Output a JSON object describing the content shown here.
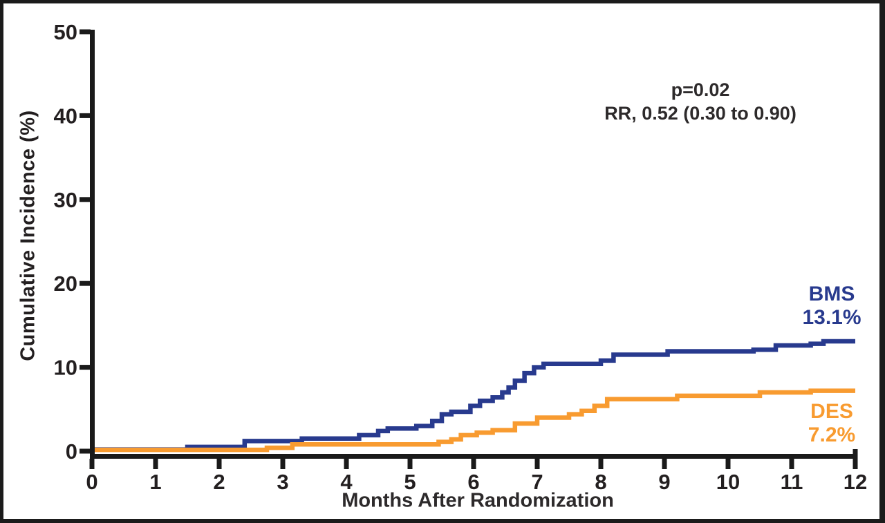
{
  "chart_data": {
    "type": "line",
    "subtype": "kaplan-meier-cumulative-incidence-step",
    "title": "",
    "xlabel": "Months After Randomization",
    "ylabel": "Cumulative Incidence (%)",
    "xlim": [
      0,
      12
    ],
    "ylim": [
      0,
      50
    ],
    "x_ticks": [
      0,
      1,
      2,
      3,
      4,
      5,
      6,
      7,
      8,
      9,
      10,
      11,
      12
    ],
    "y_ticks": [
      0,
      10,
      20,
      30,
      40,
      50
    ],
    "grid": false,
    "legend_position": "end-of-curve labels",
    "axis_color": "#1a1a1a",
    "tick_label_color": "#231f20",
    "annotations": {
      "p_value": "p=0.02",
      "risk_ratio": "RR, 0.52 (0.30 to 0.90)"
    },
    "series": [
      {
        "name": "BMS",
        "end_label": "13.1%",
        "final_value_percent": 13.1,
        "color": "#283a8e",
        "points": [
          [
            0,
            0.2
          ],
          [
            1.5,
            0.5
          ],
          [
            2.4,
            1.2
          ],
          [
            3.3,
            1.5
          ],
          [
            4.2,
            1.9
          ],
          [
            4.5,
            2.4
          ],
          [
            4.65,
            2.7
          ],
          [
            5.1,
            3.0
          ],
          [
            5.35,
            3.6
          ],
          [
            5.5,
            4.4
          ],
          [
            5.65,
            4.7
          ],
          [
            5.95,
            5.4
          ],
          [
            6.1,
            6.0
          ],
          [
            6.3,
            6.4
          ],
          [
            6.45,
            7.0
          ],
          [
            6.55,
            7.6
          ],
          [
            6.65,
            8.4
          ],
          [
            6.8,
            9.3
          ],
          [
            6.95,
            10.0
          ],
          [
            7.1,
            10.4
          ],
          [
            8.0,
            10.8
          ],
          [
            8.2,
            11.5
          ],
          [
            9.05,
            11.9
          ],
          [
            10.4,
            12.1
          ],
          [
            10.75,
            12.6
          ],
          [
            11.3,
            12.8
          ],
          [
            11.5,
            13.1
          ],
          [
            12,
            13.1
          ]
        ]
      },
      {
        "name": "DES",
        "end_label": "7.2%",
        "final_value_percent": 7.2,
        "color": "#f89b30",
        "points": [
          [
            0,
            0.15
          ],
          [
            2.75,
            0.4
          ],
          [
            3.15,
            0.8
          ],
          [
            5.45,
            1.1
          ],
          [
            5.65,
            1.4
          ],
          [
            5.8,
            1.9
          ],
          [
            6.05,
            2.2
          ],
          [
            6.3,
            2.5
          ],
          [
            6.65,
            3.3
          ],
          [
            7.0,
            4.0
          ],
          [
            7.5,
            4.4
          ],
          [
            7.7,
            4.8
          ],
          [
            7.9,
            5.4
          ],
          [
            8.1,
            6.2
          ],
          [
            9.2,
            6.6
          ],
          [
            10.5,
            7.0
          ],
          [
            11.3,
            7.2
          ],
          [
            12,
            7.2
          ]
        ]
      }
    ]
  }
}
